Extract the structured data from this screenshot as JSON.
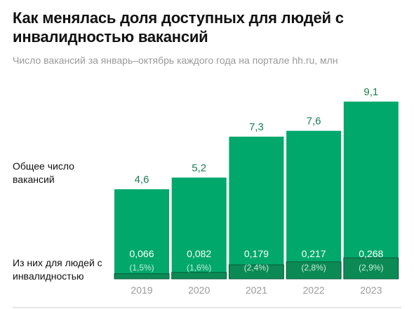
{
  "header": {
    "title": "Как менялась доля доступных для людей с инвалидностью вакансий",
    "subtitle": "Число вакансий за январь–октябрь каждого года на портале hh.ru, млн"
  },
  "row_labels": {
    "total": "Общее число вакансий",
    "disabled": "Из них для людей с инвалидностью"
  },
  "colors": {
    "bar": "#00a86b",
    "bar_small": "#0c8a55",
    "value_text": "#1a7f4e",
    "inner_text": "#ffffff",
    "inner_share_text": "#c8ecd9",
    "axis_text": "#9a9a9a"
  },
  "chart_data": {
    "type": "bar",
    "categories": [
      "2019",
      "2020",
      "2021",
      "2022",
      "2023"
    ],
    "series": [
      {
        "values": [
          4.6,
          5.2,
          7.3,
          7.6,
          9.1
        ],
        "labels": [
          "4,6",
          "5,2",
          "7,3",
          "7,6",
          "9,1"
        ]
      },
      {
        "values": [
          0.066,
          0.082,
          0.179,
          0.217,
          0.268
        ],
        "labels": [
          "0,066",
          "0,082",
          "0,179",
          "0,217",
          "0,268"
        ],
        "share_labels": [
          "(1,5%)",
          "(1,6%)",
          "(2,4%)",
          "(2,8%)",
          "(2,9%)"
        ]
      }
    ],
    "ylim": [
      0,
      9.1
    ],
    "grid": false,
    "legend": "none"
  }
}
